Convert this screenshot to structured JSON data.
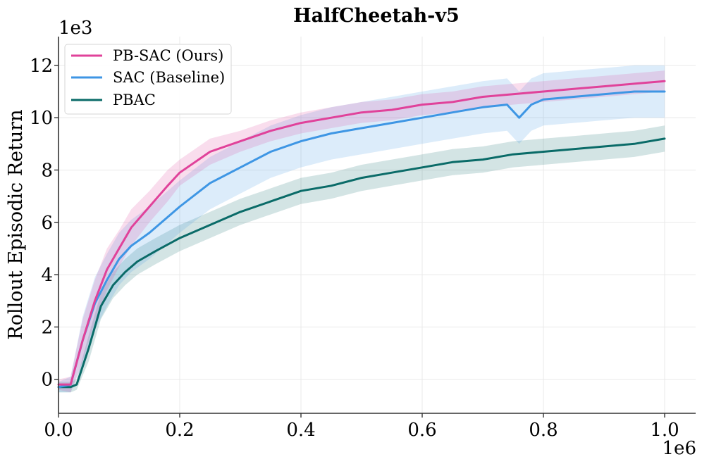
{
  "chart_data": {
    "type": "line",
    "title": "HalfCheetah-v5",
    "xlabel": "",
    "ylabel": "Rollout Episodic Return",
    "x_multiplier": "1e6",
    "y_multiplier": "1e3",
    "xlim": [
      0.0,
      1.05
    ],
    "ylim": [
      -1.3,
      13.1
    ],
    "xticks": [
      0.0,
      0.2,
      0.4,
      0.6,
      0.8,
      1.0
    ],
    "xtick_labels": [
      "0.0",
      "0.2",
      "0.4",
      "0.6",
      "0.8",
      "1.0"
    ],
    "yticks": [
      0,
      2,
      4,
      6,
      8,
      10,
      12
    ],
    "ytick_labels": [
      "0",
      "2",
      "4",
      "6",
      "8",
      "10",
      "12"
    ],
    "grid": true,
    "legend_position": "top-left",
    "series": [
      {
        "name": "PB-SAC (Ours)",
        "color": "#e0429a",
        "x": [
          0,
          0.02,
          0.04,
          0.06,
          0.08,
          0.1,
          0.12,
          0.15,
          0.18,
          0.2,
          0.25,
          0.3,
          0.35,
          0.4,
          0.45,
          0.5,
          0.55,
          0.6,
          0.65,
          0.7,
          0.75,
          0.8,
          0.85,
          0.9,
          0.95,
          1.0
        ],
        "mean": [
          -0.2,
          -0.2,
          1.5,
          3.0,
          4.2,
          5.0,
          5.8,
          6.6,
          7.4,
          7.9,
          8.7,
          9.1,
          9.5,
          9.8,
          10.0,
          10.2,
          10.3,
          10.5,
          10.6,
          10.8,
          10.9,
          11.0,
          11.1,
          11.2,
          11.3,
          11.4
        ],
        "std": [
          0.2,
          0.3,
          0.8,
          0.8,
          0.8,
          0.7,
          0.7,
          0.6,
          0.6,
          0.5,
          0.5,
          0.4,
          0.4,
          0.4,
          0.4,
          0.4,
          0.4,
          0.4,
          0.4,
          0.4,
          0.4,
          0.4,
          0.4,
          0.4,
          0.4,
          0.4
        ]
      },
      {
        "name": "SAC (Baseline)",
        "color": "#3e96e4",
        "x": [
          0,
          0.02,
          0.04,
          0.06,
          0.08,
          0.1,
          0.12,
          0.15,
          0.18,
          0.2,
          0.25,
          0.3,
          0.35,
          0.4,
          0.45,
          0.5,
          0.55,
          0.6,
          0.65,
          0.7,
          0.74,
          0.76,
          0.78,
          0.8,
          0.85,
          0.9,
          0.95,
          1.0
        ],
        "mean": [
          -0.3,
          -0.2,
          1.5,
          2.9,
          3.8,
          4.6,
          5.1,
          5.6,
          6.2,
          6.6,
          7.5,
          8.1,
          8.7,
          9.1,
          9.4,
          9.6,
          9.8,
          10.0,
          10.2,
          10.4,
          10.5,
          10.0,
          10.5,
          10.7,
          10.8,
          10.9,
          11.0,
          11.0
        ],
        "std": [
          0.2,
          0.3,
          0.9,
          1.0,
          1.0,
          1.0,
          1.0,
          1.0,
          1.0,
          1.0,
          1.0,
          1.0,
          1.0,
          1.0,
          1.0,
          1.0,
          1.0,
          1.0,
          1.0,
          1.0,
          1.0,
          1.0,
          1.0,
          1.0,
          1.0,
          1.0,
          1.0,
          1.0
        ]
      },
      {
        "name": "PBAC",
        "color": "#0a6b68",
        "x": [
          0,
          0.02,
          0.03,
          0.05,
          0.07,
          0.09,
          0.11,
          0.13,
          0.16,
          0.2,
          0.25,
          0.3,
          0.35,
          0.4,
          0.45,
          0.5,
          0.55,
          0.6,
          0.65,
          0.7,
          0.75,
          0.8,
          0.85,
          0.9,
          0.95,
          1.0
        ],
        "mean": [
          -0.3,
          -0.3,
          -0.2,
          1.2,
          2.8,
          3.6,
          4.1,
          4.5,
          4.9,
          5.4,
          5.9,
          6.4,
          6.8,
          7.2,
          7.4,
          7.7,
          7.9,
          8.1,
          8.3,
          8.4,
          8.6,
          8.7,
          8.8,
          8.9,
          9.0,
          9.2
        ],
        "std": [
          0.2,
          0.2,
          0.2,
          0.5,
          0.5,
          0.5,
          0.5,
          0.5,
          0.5,
          0.5,
          0.5,
          0.5,
          0.5,
          0.5,
          0.5,
          0.5,
          0.5,
          0.5,
          0.5,
          0.5,
          0.5,
          0.5,
          0.5,
          0.5,
          0.5,
          0.5
        ]
      }
    ]
  }
}
